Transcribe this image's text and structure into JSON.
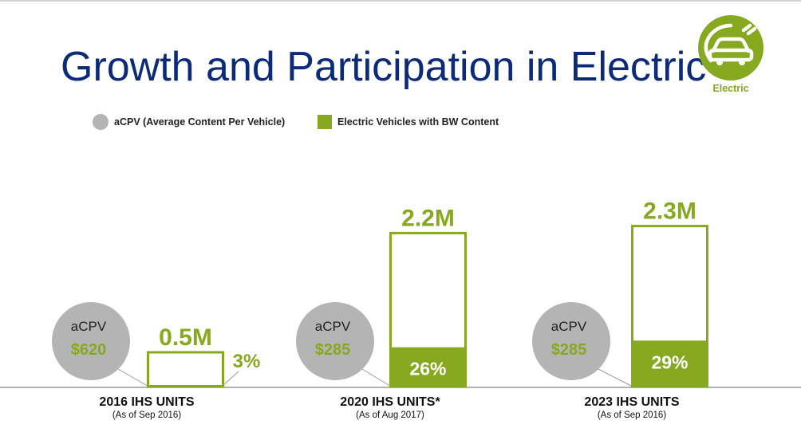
{
  "title": "Growth and Participation in Electric",
  "badge": {
    "label": "Electric",
    "icon": "electric-car-plug-icon",
    "color": "#86a91f"
  },
  "legend": [
    {
      "label": "aCPV (Average Content Per Vehicle)",
      "marker": "circle",
      "color": "#b4b4b4"
    },
    {
      "label": "Electric Vehicles with BW Content",
      "marker": "square",
      "color": "#86a91f"
    }
  ],
  "colors": {
    "green": "#86a91f",
    "gray": "#b4b4b4",
    "title": "#0c2a7a"
  },
  "chart_data": {
    "type": "bar",
    "categories": [
      "2016  IHS UNITS",
      "2020  IHS UNITS*",
      "2023  IHS UNITS"
    ],
    "category_notes": [
      "(As of Sep 2016)",
      "(As of Aug 2017)",
      "(As of Sep 2016)"
    ],
    "series": [
      {
        "name": "Electric Vehicles with BW Content",
        "values_label": [
          "3%",
          "26%",
          "29%"
        ],
        "values": [
          3,
          26,
          29
        ]
      }
    ],
    "totals": [
      0.5,
      2.2,
      2.3
    ],
    "totals_label": [
      "0.5M",
      "2.2M",
      "2.3M"
    ],
    "acpv": [
      {
        "label": "aCPV",
        "value": "$620"
      },
      {
        "label": "aCPV",
        "value": "$285"
      },
      {
        "label": "aCPV",
        "value": "$285"
      }
    ],
    "unit": "M",
    "ylim": [
      0,
      2.5
    ]
  }
}
